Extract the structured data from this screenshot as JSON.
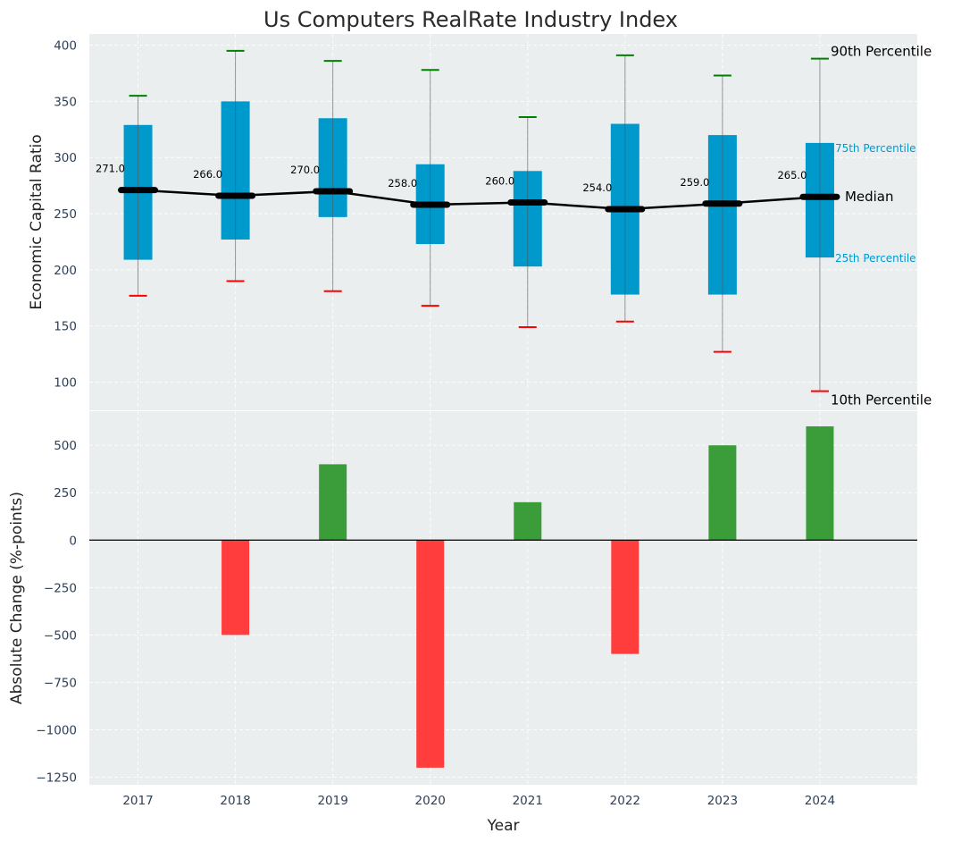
{
  "chart_data": [
    {
      "type": "box",
      "title": "Us Computers RealRate Industry Index",
      "xlabel": "",
      "ylabel": "Economic Capital Ratio",
      "ylim": [
        75,
        410
      ],
      "xlim": [
        2016.5,
        2025
      ],
      "yticks": [
        100,
        150,
        200,
        250,
        300,
        350,
        400
      ],
      "grid": true,
      "categories": [
        "2017",
        "2018",
        "2019",
        "2020",
        "2021",
        "2022",
        "2023",
        "2024"
      ],
      "series": [
        {
          "name": "10th Percentile",
          "values": [
            177,
            190,
            181,
            168,
            149,
            154,
            127,
            92
          ]
        },
        {
          "name": "25th Percentile",
          "values": [
            209,
            227,
            247,
            223,
            203,
            178,
            178,
            211
          ]
        },
        {
          "name": "Median",
          "values": [
            271,
            266,
            270,
            258,
            260,
            254,
            259,
            265
          ]
        },
        {
          "name": "75th Percentile",
          "values": [
            329,
            350,
            335,
            294,
            288,
            330,
            320,
            313
          ]
        },
        {
          "name": "90th Percentile",
          "values": [
            355,
            395,
            386,
            378,
            336,
            391,
            373,
            388
          ]
        }
      ],
      "median_labels": [
        "271.0",
        "266.0",
        "270.0",
        "258.0",
        "260.0",
        "254.0",
        "259.0",
        "265.0"
      ],
      "annotations": {
        "p90": "90th Percentile",
        "p75": "75th Percentile",
        "median": "Median",
        "p25": "25th Percentile",
        "p10": "10th Percentile"
      },
      "colors": {
        "box": "#0099cc",
        "p90": "#008000",
        "p10": "#ff0000",
        "median": "#000000",
        "whisker": "#888888",
        "bg": "#eaeeef"
      }
    },
    {
      "type": "bar",
      "xlabel": "Year",
      "ylabel": "Absolute Change (%-points)",
      "ylim": [
        -1290,
        680
      ],
      "yticks": [
        -1250,
        -1000,
        -750,
        -500,
        -250,
        0,
        250,
        500
      ],
      "ytick_labels": [
        "−1250",
        "−1000",
        "−750",
        "−500",
        "−250",
        "0",
        "250",
        "500"
      ],
      "grid": true,
      "categories": [
        "2017",
        "2018",
        "2019",
        "2020",
        "2021",
        "2022",
        "2023",
        "2024"
      ],
      "values": [
        0,
        -500,
        400,
        -1200,
        200,
        -600,
        500,
        600
      ],
      "colors": {
        "positive": "#3a9d3a",
        "negative": "#ff3d3d",
        "zero_line": "#000000"
      }
    }
  ]
}
